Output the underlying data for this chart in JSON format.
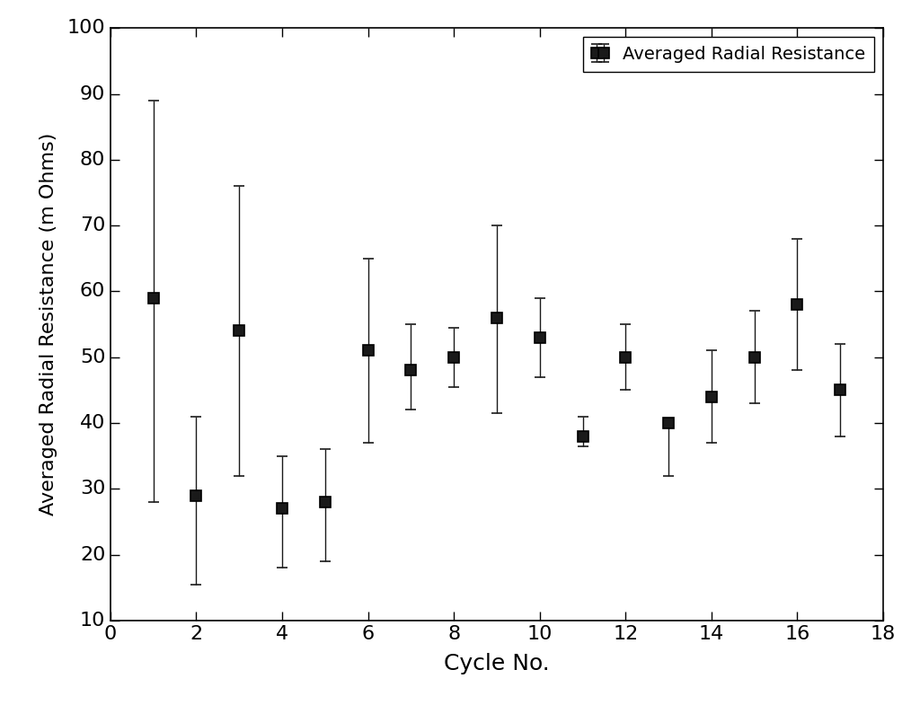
{
  "x": [
    1,
    2,
    3,
    4,
    5,
    6,
    7,
    8,
    9,
    10,
    11,
    12,
    13,
    14,
    15,
    16,
    17
  ],
  "y": [
    59.0,
    29.0,
    54.0,
    27.0,
    28.0,
    51.0,
    48.0,
    50.0,
    56.0,
    53.0,
    38.0,
    50.0,
    40.0,
    44.0,
    50.0,
    58.0,
    45.0
  ],
  "yerr_upper": [
    30.0,
    12.0,
    22.0,
    8.0,
    8.0,
    14.0,
    7.0,
    4.5,
    14.0,
    6.0,
    3.0,
    5.0,
    0.0,
    7.0,
    7.0,
    10.0,
    7.0
  ],
  "yerr_lower": [
    31.0,
    13.5,
    22.0,
    9.0,
    9.0,
    14.0,
    6.0,
    4.5,
    14.5,
    6.0,
    1.5,
    5.0,
    8.0,
    7.0,
    7.0,
    10.0,
    7.0
  ],
  "xlabel": "Cycle No.",
  "ylabel": "Averaged Radial Resistance (m Ohms)",
  "legend_label": "Averaged Radial Resistance",
  "xlim": [
    0,
    18
  ],
  "ylim": [
    10,
    100
  ],
  "xticks": [
    0,
    2,
    4,
    6,
    8,
    10,
    12,
    14,
    16,
    18
  ],
  "yticks": [
    10,
    20,
    30,
    40,
    50,
    60,
    70,
    80,
    90,
    100
  ],
  "marker_color": "#1a1a1a",
  "marker_size": 8,
  "capsize": 4,
  "elinewidth": 1.0,
  "markeredgewidth": 1.2,
  "background_color": "#ffffff",
  "xlabel_fontsize": 18,
  "ylabel_fontsize": 16,
  "tick_labelsize": 16,
  "legend_fontsize": 14
}
